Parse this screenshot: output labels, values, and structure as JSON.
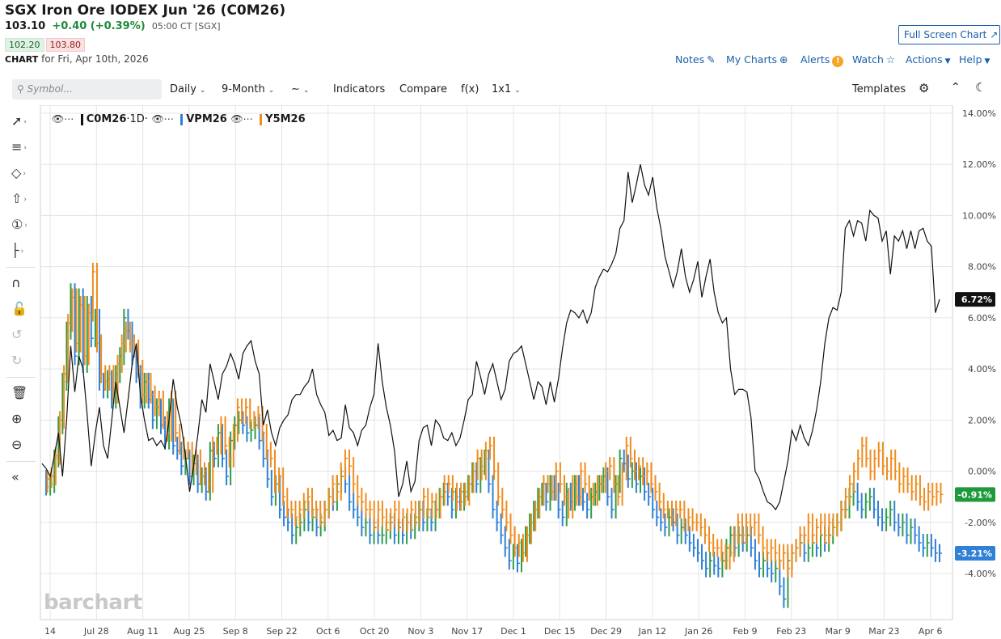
{
  "header": {
    "title": "SGX Iron Ore IODEX Jun '26 (C0M26)",
    "last": "103.10",
    "change": "+0.40 (+0.39%)",
    "time": "05:00 CT [SGX]",
    "bid": "102.20",
    "ask": "103.80",
    "chart_label": "CHART",
    "chart_for": "for Fri, Apr 10th, 2026"
  },
  "nav": {
    "fullscreen": "Full Screen Chart",
    "notes": "Notes",
    "mycharts": "My Charts",
    "alerts": "Alerts",
    "watch": "Watch",
    "actions": "Actions",
    "help": "Help"
  },
  "toolbar": {
    "search_placeholder": "Symbol...",
    "interval": "Daily",
    "range": "9-Month",
    "indicators": "Indicators",
    "compare": "Compare",
    "fx": "f(x)",
    "layout": "1x1",
    "templates": "Templates"
  },
  "legend": {
    "s1": "C0M26",
    "s1_suffix": "·1D·",
    "s2": "VPM26",
    "s3": "Y5M26"
  },
  "logo": "barchart",
  "colors": {
    "c0m26": "#111111",
    "vpm26_up": "#2e9e49",
    "vpm26_down": "#2f80d6",
    "y5m26": "#f08c1e",
    "badge_green": "#1e9a3c",
    "badge_blue": "#2f80d6"
  },
  "chart_data": {
    "type": "line",
    "yunit": "%",
    "ylim": [
      -5.5,
      14.0
    ],
    "yticks": [
      "14.00%",
      "12.00%",
      "10.00%",
      "8.00%",
      "6.00%",
      "4.00%",
      "2.00%",
      "0.00%",
      "-2.00%",
      "-4.00%"
    ],
    "ytick_values": [
      14,
      12,
      10,
      8,
      6,
      4,
      2,
      0,
      -2,
      -4
    ],
    "xticks": [
      "14",
      "Jul 28",
      "Aug 11",
      "Aug 25",
      "Sep 8",
      "Sep 22",
      "Oct 6",
      "Oct 20",
      "Nov 3",
      "Nov 17",
      "Dec 1",
      "Dec 15",
      "Dec 29",
      "Jan 12",
      "Jan 26",
      "Feb 9",
      "Feb 23",
      "Mar 9",
      "Mar 23",
      "Apr 6"
    ],
    "badges": [
      {
        "label": "6.72%",
        "value": 6.72,
        "series": "C0M26"
      },
      {
        "label": "-0.91%",
        "value": -0.91,
        "series": "Y5M26"
      },
      {
        "label": "-3.21%",
        "value": -3.21,
        "series": "VPM26"
      }
    ],
    "series": [
      {
        "name": "C0M26",
        "values": [
          0.3,
          0.1,
          -0.2,
          0.6,
          1.5,
          -0.2,
          2.0,
          4.9,
          3.1,
          4.5,
          4.0,
          2.2,
          0.2,
          1.5,
          2.5,
          1.0,
          0.5,
          2.0,
          3.5,
          2.5,
          1.5,
          2.8,
          4.2,
          5.0,
          3.0,
          2.0,
          1.2,
          1.3,
          1.0,
          1.2,
          0.9,
          2.0,
          3.6,
          2.5,
          1.8,
          0.6,
          -0.8,
          0.2,
          1.4,
          2.8,
          2.3,
          4.2,
          3.5,
          2.8,
          3.8,
          4.1,
          4.6,
          4.2,
          3.6,
          4.6,
          4.9,
          5.1,
          4.3,
          3.8,
          1.8,
          2.4,
          1.5,
          1.0,
          1.7,
          2.0,
          2.2,
          2.8,
          3.0,
          3.0,
          3.3,
          3.5,
          4.0,
          3.0,
          2.6,
          2.3,
          1.4,
          1.6,
          1.2,
          1.3,
          2.6,
          1.7,
          1.5,
          1.0,
          1.6,
          1.8,
          2.5,
          3.0,
          5.0,
          3.5,
          2.5,
          1.8,
          0.8,
          -1.0,
          -0.5,
          0.4,
          -0.8,
          -0.4,
          1.2,
          1.7,
          1.8,
          1.0,
          2.0,
          1.8,
          1.3,
          1.2,
          1.5,
          1.0,
          1.3,
          2.0,
          2.8,
          3.0,
          4.3,
          3.7,
          3.0,
          3.8,
          4.2,
          3.5,
          2.8,
          3.2,
          4.3,
          4.6,
          4.7,
          4.9,
          4.2,
          3.5,
          2.8,
          3.5,
          3.3,
          2.6,
          3.5,
          2.7,
          3.6,
          4.8,
          5.8,
          6.3,
          6.2,
          6.0,
          6.3,
          5.8,
          6.2,
          7.2,
          7.6,
          7.9,
          7.8,
          8.1,
          8.5,
          9.5,
          9.8,
          11.7,
          10.5,
          11.2,
          12.0,
          11.2,
          10.8,
          11.5,
          10.3,
          9.5,
          8.4,
          7.8,
          7.2,
          7.8,
          8.7,
          7.6,
          7.0,
          7.5,
          8.2,
          6.8,
          7.6,
          8.3,
          7.0,
          6.2,
          5.8,
          6.0,
          4.0,
          3.0,
          3.2,
          3.2,
          3.1,
          2.1,
          0.0,
          -0.3,
          -0.8,
          -1.2,
          -1.3,
          -1.5,
          -1.2,
          -0.4,
          0.4,
          1.6,
          1.2,
          1.8,
          1.3,
          1.0,
          1.6,
          2.4,
          3.5,
          5.0,
          6.0,
          6.4,
          6.3,
          7.0,
          9.5,
          9.8,
          9.2,
          9.8,
          9.7,
          9.0,
          10.2,
          10.0,
          9.9,
          9.0,
          9.4,
          7.7,
          9.2,
          9.0,
          9.4,
          8.7,
          9.4,
          8.7,
          9.4,
          9.5,
          9.0,
          8.8,
          6.2,
          6.72
        ]
      },
      {
        "name": "VPM26",
        "values": [
          -0.3,
          -0.6,
          -0.5,
          0.5,
          1.8,
          3.5,
          5.5,
          7.0,
          4.5,
          6.8,
          4.2,
          6.5,
          5.2,
          6.0,
          3.5,
          3.2,
          3.6,
          2.8,
          3.8,
          4.5,
          6.0,
          5.5,
          4.5,
          3.8,
          2.8,
          3.5,
          2.8,
          2.0,
          2.5,
          1.8,
          1.2,
          2.5,
          1.0,
          0.8,
          0.2,
          0.5,
          -0.2,
          0.3,
          -0.5,
          -0.2,
          -0.8,
          0.8,
          0.5,
          1.5,
          0.5,
          -0.2,
          1.2,
          1.8,
          2.0,
          1.8,
          1.5,
          1.6,
          1.8,
          1.2,
          0.5,
          -0.3,
          -1.0,
          -0.5,
          -1.5,
          -1.8,
          -2.0,
          -2.5,
          -2.2,
          -2.0,
          -1.5,
          -2.0,
          -1.8,
          -2.2,
          -2.0,
          -1.5,
          -1.0,
          -1.2,
          -0.5,
          -0.2,
          -0.5,
          -1.2,
          -1.5,
          -1.8,
          -2.2,
          -2.0,
          -2.5,
          -2.2,
          -2.5,
          -2.5,
          -2.3,
          -2.0,
          -2.5,
          -2.2,
          -2.5,
          -2.0,
          -2.3,
          -2.0,
          -1.5,
          -2.0,
          -1.8,
          -2.0,
          -1.5,
          -1.0,
          -0.8,
          -1.0,
          -1.5,
          -1.0,
          -1.2,
          -0.8,
          -0.5,
          0.0,
          -0.5,
          0.2,
          0.5,
          -0.5,
          -1.5,
          -2.0,
          -2.5,
          -3.0,
          -3.5,
          -3.2,
          -3.6,
          -3.0,
          -2.5,
          -2.0,
          -1.5,
          -1.0,
          -0.8,
          -1.2,
          -0.5,
          -0.8,
          -1.5,
          -1.8,
          -0.8,
          -1.2,
          -0.5,
          -1.0,
          -1.2,
          -1.5,
          -1.0,
          -0.8,
          -0.5,
          -0.2,
          -1.0,
          -1.5,
          -0.5,
          0.5,
          0.3,
          -0.3,
          0.0,
          -0.5,
          -0.2,
          -0.8,
          -1.0,
          -1.5,
          -1.8,
          -2.0,
          -2.2,
          -1.8,
          -2.0,
          -2.5,
          -2.2,
          -2.5,
          -2.8,
          -3.0,
          -3.2,
          -3.5,
          -3.8,
          -3.5,
          -3.7,
          -3.8,
          -3.5,
          -3.0,
          -2.5,
          -3.0,
          -2.5,
          -2.8,
          -2.5,
          -3.0,
          -3.5,
          -3.8,
          -3.5,
          -3.8,
          -4.0,
          -3.8,
          -4.5,
          -5.0,
          -3.5,
          -3.2,
          -3.0,
          -2.8,
          -3.2,
          -3.0,
          -2.8,
          -3.0,
          -2.5,
          -2.8,
          -2.5,
          -2.2,
          -2.0,
          -1.5,
          -1.5,
          -1.0,
          -0.8,
          -1.2,
          -1.5,
          -1.2,
          -1.0,
          -1.5,
          -1.8,
          -2.0,
          -1.8,
          -1.5,
          -2.0,
          -2.2,
          -2.0,
          -2.5,
          -2.2,
          -2.5,
          -2.8,
          -3.0,
          -2.8,
          -3.0,
          -3.2,
          -3.21
        ]
      },
      {
        "name": "Y5M26",
        "values": [
          -0.5,
          -0.3,
          -0.2,
          0.6,
          2.0,
          3.8,
          5.8,
          6.8,
          5.0,
          6.5,
          4.5,
          6.2,
          7.8,
          5.0,
          3.8,
          3.5,
          3.8,
          3.0,
          4.2,
          5.0,
          5.5,
          5.0,
          4.8,
          4.0,
          3.0,
          3.5,
          3.0,
          2.5,
          2.8,
          2.0,
          1.5,
          2.8,
          1.5,
          1.0,
          0.8,
          0.8,
          0.2,
          0.5,
          -0.2,
          0.0,
          -0.5,
          1.0,
          1.0,
          1.8,
          1.0,
          0.5,
          1.5,
          2.5,
          2.2,
          2.5,
          2.0,
          2.0,
          2.2,
          1.5,
          0.8,
          0.5,
          -0.5,
          -0.2,
          -1.0,
          -1.5,
          -1.5,
          -1.8,
          -1.5,
          -1.2,
          -1.0,
          -1.5,
          -1.5,
          -1.8,
          -1.5,
          -1.0,
          -0.5,
          -0.8,
          0.0,
          0.5,
          0.2,
          -0.5,
          -1.0,
          -1.2,
          -1.5,
          -1.5,
          -2.0,
          -1.5,
          -1.8,
          -2.0,
          -1.8,
          -1.5,
          -2.0,
          -1.8,
          -2.0,
          -1.5,
          -1.8,
          -1.5,
          -1.0,
          -1.5,
          -1.2,
          -1.5,
          -1.0,
          -0.5,
          -0.5,
          -0.8,
          -1.2,
          -0.8,
          -1.0,
          -0.5,
          0.0,
          0.5,
          0.0,
          0.8,
          1.0,
          0.0,
          -1.0,
          -1.5,
          -2.0,
          -2.5,
          -3.0,
          -2.8,
          -3.2,
          -2.5,
          -2.0,
          -1.5,
          -1.0,
          -0.5,
          -0.5,
          -0.8,
          0.0,
          -0.5,
          -1.0,
          -1.5,
          -0.5,
          -1.0,
          0.0,
          -0.5,
          -0.8,
          -1.0,
          -0.5,
          -0.5,
          0.0,
          0.2,
          -0.5,
          -1.0,
          0.0,
          1.0,
          0.5,
          0.0,
          0.2,
          -0.2,
          0.0,
          -0.5,
          -0.8,
          -1.2,
          -1.5,
          -1.5,
          -1.8,
          -1.5,
          -1.5,
          -2.0,
          -1.8,
          -2.0,
          -2.0,
          -2.2,
          -2.5,
          -2.8,
          -3.0,
          -3.0,
          -3.2,
          -3.5,
          -3.2,
          -2.5,
          -2.0,
          -2.5,
          -2.0,
          -2.2,
          -2.0,
          -2.5,
          -3.0,
          -3.2,
          -3.0,
          -3.2,
          -3.5,
          -3.2,
          -3.8,
          -3.2,
          -3.0,
          -2.5,
          -2.5,
          -2.0,
          -2.5,
          -2.2,
          -2.0,
          -2.5,
          -2.0,
          -2.2,
          -2.0,
          -1.5,
          -1.0,
          -0.5,
          0.0,
          0.5,
          1.0,
          0.5,
          0.0,
          0.5,
          0.8,
          0.2,
          0.0,
          0.5,
          0.0,
          -0.5,
          -0.2,
          -0.5,
          -0.8,
          -0.5,
          -1.0,
          -1.2,
          -0.8,
          -1.0,
          -0.8,
          -0.91
        ]
      }
    ]
  }
}
